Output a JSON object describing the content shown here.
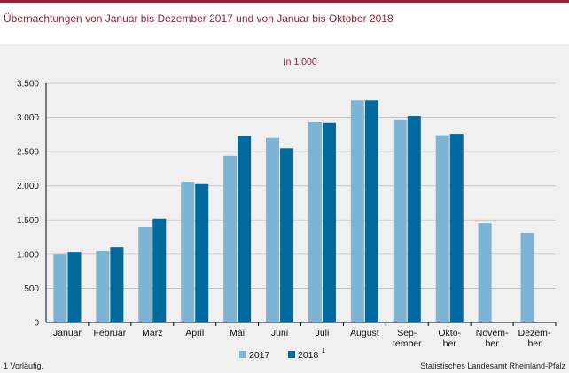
{
  "title": "Übernachtungen  von  Januar bis Dezember  2017  und  von Januar  bis  Oktober  2018",
  "unit": "in 1.000",
  "footnote": "1 Vorläufig.",
  "source": "Statistisches Landesamt Rheinland-Pfalz",
  "colors": {
    "accent": "#9b1b3a",
    "series2017": "#7fb3d3",
    "series2018": "#006a9e",
    "panel": "#f0f0f0"
  },
  "chart_data": {
    "type": "bar",
    "title": "Übernachtungen  von  Januar bis Dezember  2017  und  von Januar  bis  Oktober  2018",
    "subtitle": "in 1.000",
    "categories": [
      [
        "Januar"
      ],
      [
        "Februar"
      ],
      [
        "März"
      ],
      [
        "April"
      ],
      [
        "Mai"
      ],
      [
        "Juni"
      ],
      [
        "Juli"
      ],
      [
        "August"
      ],
      [
        "Sep-",
        "tember"
      ],
      [
        "Okto-",
        "ber"
      ],
      [
        "Novem-",
        "ber"
      ],
      [
        "Dezem-",
        "ber"
      ]
    ],
    "series": [
      {
        "name": "2017",
        "values": [
          995,
          1050,
          1400,
          2060,
          2440,
          2700,
          2930,
          3250,
          2970,
          2740,
          1450,
          1310
        ]
      },
      {
        "name": "2018",
        "values": [
          1035,
          1100,
          1520,
          2025,
          2730,
          2550,
          2920,
          3250,
          3020,
          2760,
          null,
          null
        ]
      }
    ],
    "legend": [
      {
        "label": "2017"
      },
      {
        "label": "2018",
        "sup": "1"
      }
    ],
    "ylim": [
      0,
      3500
    ],
    "yticks": [
      0,
      500,
      1000,
      1500,
      2000,
      2500,
      3000,
      3500
    ],
    "ytick_labels": [
      "0",
      "500",
      "1.000",
      "1.500",
      "2.000",
      "2.500",
      "3.000",
      "3.500"
    ],
    "grid": true,
    "legend_position": "bottom"
  }
}
